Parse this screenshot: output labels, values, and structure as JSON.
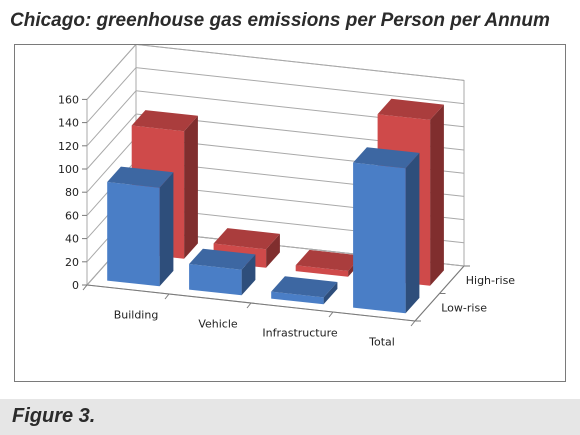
{
  "title": "Chicago: greenhouse gas emissions per Person per Annum",
  "caption": "Figure 3.",
  "chart_data": {
    "type": "bar",
    "subtype": "3d-column",
    "title": "",
    "xlabel": "",
    "ylabel": "",
    "ylim": [
      0,
      160
    ],
    "yticks": [
      0,
      20,
      40,
      60,
      80,
      100,
      120,
      140,
      160
    ],
    "grid": true,
    "legend": "none",
    "categories": [
      "Building",
      "Vehicle",
      "Infrastructure",
      "Total"
    ],
    "series": [
      {
        "name": "Low-rise",
        "color": "#4a7ec6",
        "values": [
          85,
          22,
          6,
          125
        ]
      },
      {
        "name": "High-rise",
        "color": "#cf4a4a",
        "values": [
          110,
          16,
          5,
          143
        ]
      }
    ]
  }
}
